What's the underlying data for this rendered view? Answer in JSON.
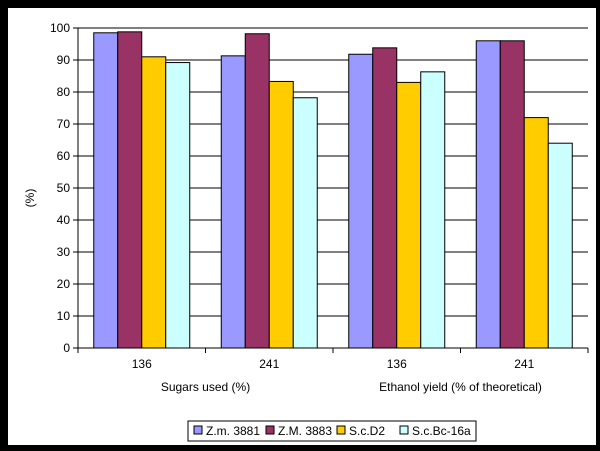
{
  "chart_data": {
    "type": "bar",
    "ylabel": "(%)",
    "ylim": [
      0,
      100
    ],
    "yticks": [
      0,
      10,
      20,
      30,
      40,
      50,
      60,
      70,
      80,
      90,
      100
    ],
    "grid": true,
    "legend_position": "bottom",
    "categories": [
      "136",
      "241",
      "136",
      "241"
    ],
    "group_labels": [
      "Sugars used (%)",
      "Ethanol yield (% of theoretical)"
    ],
    "series": [
      {
        "name": "Z.m. 3881",
        "color": "#9999FF",
        "values": [
          98.5,
          91.3,
          91.8,
          96.0
        ]
      },
      {
        "name": "Z.M. 3883",
        "color": "#993366",
        "values": [
          98.8,
          98.2,
          93.8,
          96.0
        ]
      },
      {
        "name": "S.c.D2",
        "color": "#FFCC00",
        "values": [
          91.0,
          83.3,
          83.0,
          72.0
        ]
      },
      {
        "name": "S.c.Bc-16a",
        "color": "#CCFFFF",
        "values": [
          89.2,
          78.2,
          86.3,
          64.0
        ]
      }
    ],
    "colors": {
      "frame": "#000000",
      "background": "#FFFFFF",
      "bar_outline": "#000000",
      "grid": "#000000"
    }
  }
}
